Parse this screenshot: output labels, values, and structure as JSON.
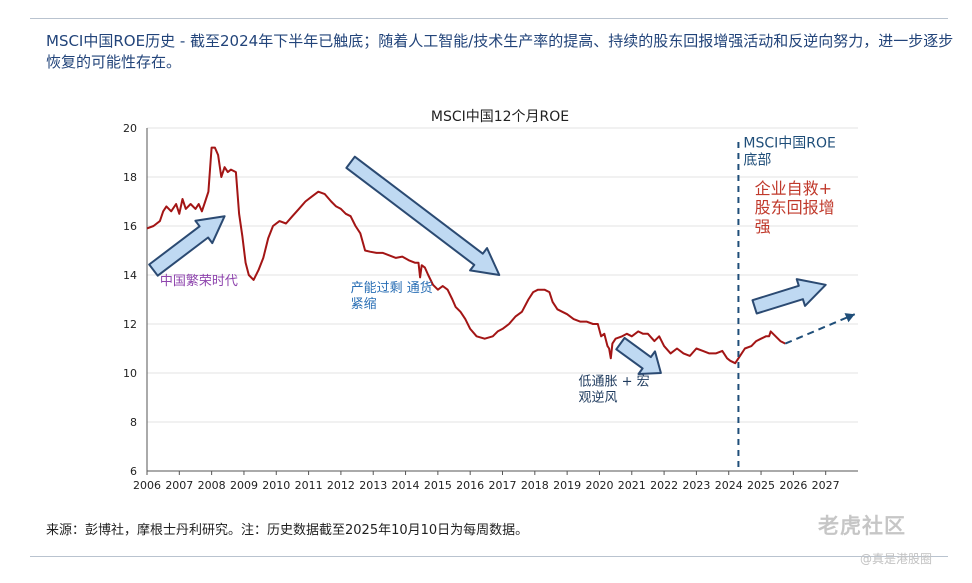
{
  "heading": "MSCI中国ROE历史 - 截至2024年下半年已触底；随着人工智能/技术生产率的提高、持续的股东回报增强活动和反逆向努力，进一步逐步恢复的可能性存在。",
  "source_note": "来源：彭博社，摩根士丹利研究。注：历史数据截至2025年10月10日为每周数据。",
  "watermark": {
    "brand": "老虎社区",
    "handle": "@真是港股圈"
  },
  "colors": {
    "line": "#a31515",
    "arrow_fill": "#bfd9f2",
    "arrow_stroke": "#2b4a72",
    "forecast": "#1f4e79",
    "heading": "#22447a"
  },
  "chart_data": {
    "type": "line",
    "title": "MSCI中国12个月ROE",
    "xlabel": "",
    "ylabel": "",
    "xlim": [
      2006,
      2028
    ],
    "ylim": [
      6,
      20
    ],
    "x_ticks": [
      "2006",
      "2007",
      "2008",
      "2009",
      "2010",
      "2011",
      "2012",
      "2013",
      "2014",
      "2015",
      "2016",
      "2017",
      "2018",
      "2019",
      "2020",
      "2021",
      "2022",
      "2023",
      "2024",
      "2025",
      "2026",
      "2027"
    ],
    "y_ticks": [
      "6",
      "8",
      "10",
      "12",
      "14",
      "16",
      "18",
      "20"
    ],
    "series": [
      {
        "name": "MSCI中国12个月ROE",
        "points": [
          [
            2006.0,
            15.9
          ],
          [
            2006.2,
            16.0
          ],
          [
            2006.4,
            16.2
          ],
          [
            2006.5,
            16.6
          ],
          [
            2006.6,
            16.8
          ],
          [
            2006.75,
            16.6
          ],
          [
            2006.9,
            16.9
          ],
          [
            2007.0,
            16.5
          ],
          [
            2007.1,
            17.1
          ],
          [
            2007.2,
            16.7
          ],
          [
            2007.35,
            16.9
          ],
          [
            2007.5,
            16.7
          ],
          [
            2007.6,
            16.9
          ],
          [
            2007.7,
            16.6
          ],
          [
            2007.8,
            17.0
          ],
          [
            2007.9,
            17.4
          ],
          [
            2007.95,
            18.3
          ],
          [
            2008.0,
            19.2
          ],
          [
            2008.1,
            19.2
          ],
          [
            2008.2,
            18.9
          ],
          [
            2008.3,
            18.0
          ],
          [
            2008.4,
            18.4
          ],
          [
            2008.5,
            18.2
          ],
          [
            2008.6,
            18.3
          ],
          [
            2008.75,
            18.2
          ],
          [
            2008.85,
            16.5
          ],
          [
            2008.95,
            15.6
          ],
          [
            2009.05,
            14.5
          ],
          [
            2009.15,
            14.0
          ],
          [
            2009.3,
            13.8
          ],
          [
            2009.45,
            14.2
          ],
          [
            2009.6,
            14.7
          ],
          [
            2009.75,
            15.5
          ],
          [
            2009.9,
            16.0
          ],
          [
            2010.1,
            16.2
          ],
          [
            2010.3,
            16.1
          ],
          [
            2010.5,
            16.4
          ],
          [
            2010.7,
            16.7
          ],
          [
            2010.9,
            17.0
          ],
          [
            2011.1,
            17.2
          ],
          [
            2011.3,
            17.4
          ],
          [
            2011.5,
            17.3
          ],
          [
            2011.7,
            17.0
          ],
          [
            2011.85,
            16.8
          ],
          [
            2012.0,
            16.7
          ],
          [
            2012.15,
            16.5
          ],
          [
            2012.3,
            16.4
          ],
          [
            2012.45,
            16.0
          ],
          [
            2012.6,
            15.7
          ],
          [
            2012.75,
            15.0
          ],
          [
            2012.9,
            14.95
          ],
          [
            2013.1,
            14.9
          ],
          [
            2013.3,
            14.9
          ],
          [
            2013.5,
            14.8
          ],
          [
            2013.7,
            14.7
          ],
          [
            2013.9,
            14.75
          ],
          [
            2014.1,
            14.6
          ],
          [
            2014.3,
            14.5
          ],
          [
            2014.4,
            14.5
          ],
          [
            2014.45,
            13.9
          ],
          [
            2014.5,
            14.4
          ],
          [
            2014.6,
            14.3
          ],
          [
            2014.7,
            14.0
          ],
          [
            2014.85,
            13.6
          ],
          [
            2015.0,
            13.4
          ],
          [
            2015.15,
            13.55
          ],
          [
            2015.3,
            13.4
          ],
          [
            2015.45,
            13.0
          ],
          [
            2015.55,
            12.7
          ],
          [
            2015.7,
            12.5
          ],
          [
            2015.85,
            12.2
          ],
          [
            2016.0,
            11.8
          ],
          [
            2016.2,
            11.5
          ],
          [
            2016.45,
            11.4
          ],
          [
            2016.7,
            11.5
          ],
          [
            2016.85,
            11.7
          ],
          [
            2017.0,
            11.8
          ],
          [
            2017.2,
            12.0
          ],
          [
            2017.4,
            12.3
          ],
          [
            2017.6,
            12.5
          ],
          [
            2017.8,
            13.0
          ],
          [
            2017.95,
            13.3
          ],
          [
            2018.1,
            13.4
          ],
          [
            2018.3,
            13.4
          ],
          [
            2018.45,
            13.3
          ],
          [
            2018.55,
            12.9
          ],
          [
            2018.7,
            12.6
          ],
          [
            2018.85,
            12.5
          ],
          [
            2019.0,
            12.4
          ],
          [
            2019.2,
            12.2
          ],
          [
            2019.4,
            12.1
          ],
          [
            2019.6,
            12.1
          ],
          [
            2019.8,
            12.0
          ],
          [
            2019.95,
            12.0
          ],
          [
            2020.05,
            11.5
          ],
          [
            2020.15,
            11.6
          ],
          [
            2020.25,
            11.1
          ],
          [
            2020.3,
            11.0
          ],
          [
            2020.35,
            10.6
          ],
          [
            2020.4,
            11.2
          ],
          [
            2020.5,
            11.4
          ],
          [
            2020.7,
            11.5
          ],
          [
            2020.85,
            11.6
          ],
          [
            2021.0,
            11.5
          ],
          [
            2021.2,
            11.7
          ],
          [
            2021.35,
            11.6
          ],
          [
            2021.5,
            11.6
          ],
          [
            2021.7,
            11.3
          ],
          [
            2021.85,
            11.5
          ],
          [
            2022.0,
            11.1
          ],
          [
            2022.2,
            10.8
          ],
          [
            2022.4,
            11.0
          ],
          [
            2022.6,
            10.8
          ],
          [
            2022.8,
            10.7
          ],
          [
            2023.0,
            11.0
          ],
          [
            2023.2,
            10.9
          ],
          [
            2023.4,
            10.8
          ],
          [
            2023.6,
            10.8
          ],
          [
            2023.8,
            10.9
          ],
          [
            2023.95,
            10.6
          ],
          [
            2024.05,
            10.5
          ],
          [
            2024.2,
            10.4
          ],
          [
            2024.35,
            10.7
          ],
          [
            2024.5,
            11.0
          ],
          [
            2024.7,
            11.1
          ],
          [
            2024.85,
            11.3
          ],
          [
            2025.0,
            11.4
          ],
          [
            2025.15,
            11.5
          ],
          [
            2025.25,
            11.5
          ],
          [
            2025.3,
            11.7
          ],
          [
            2025.45,
            11.5
          ],
          [
            2025.6,
            11.3
          ],
          [
            2025.75,
            11.2
          ]
        ]
      }
    ],
    "forecast_line": {
      "points": [
        [
          2025.75,
          11.2
        ],
        [
          2027.9,
          12.4
        ]
      ],
      "style": "dashed"
    },
    "marker_line": {
      "x": 2024.3,
      "style": "dashed",
      "label": "MSCI中国ROE\n底部"
    },
    "annotations": [
      {
        "name": "annotation-china-boom",
        "text": "中国繁荣时代",
        "x": 2006.4,
        "y": 13.6,
        "color": "#8e44ad"
      },
      {
        "name": "annotation-overcapacity",
        "text": "产能过剩 通货\n紧缩",
        "x": 2012.3,
        "y": 13.3,
        "color": "#2a6fb5"
      },
      {
        "name": "annotation-low-inflation",
        "text": "低通胀 + 宏\n观逆风",
        "x": 2019.35,
        "y": 9.5,
        "color": "#1f3b5e"
      },
      {
        "name": "annotation-self-rescue",
        "text": "企业自救+\n股东回报增\n强",
        "x": 2024.8,
        "y": 17.3,
        "color": "#c0392b"
      }
    ],
    "arrows": [
      {
        "name": "arrow-boom-up",
        "from": [
          2006.2,
          14.2
        ],
        "to": [
          2008.4,
          16.4
        ]
      },
      {
        "name": "arrow-overcapacity-down",
        "from": [
          2012.3,
          18.6
        ],
        "to": [
          2016.9,
          14.0
        ]
      },
      {
        "name": "arrow-lowinflation-down",
        "from": [
          2020.65,
          11.2
        ],
        "to": [
          2021.9,
          10.0
        ]
      },
      {
        "name": "arrow-recovery-up",
        "from": [
          2024.8,
          12.7
        ],
        "to": [
          2027.0,
          13.6
        ]
      }
    ],
    "grid": true,
    "legend": "none"
  }
}
